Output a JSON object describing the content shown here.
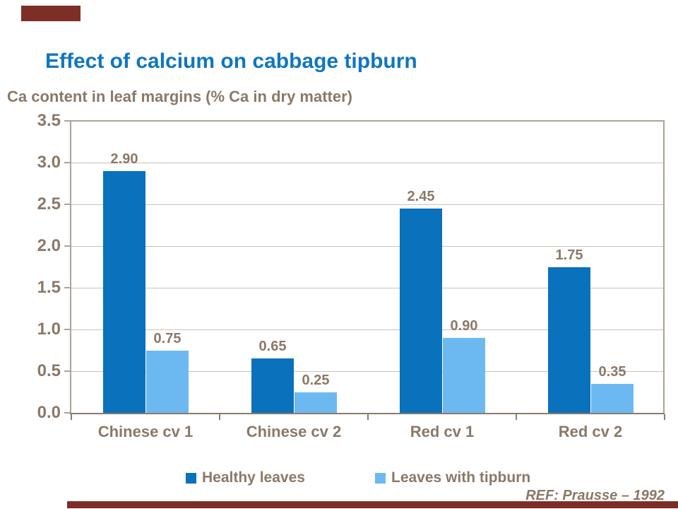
{
  "slide": {
    "title": "Effect of calcium on cabbage tipburn",
    "reference": "REF: Prausse – 1992",
    "colors": {
      "title_blue": "#0F76C0",
      "text_tan": "#8A7968",
      "accent_maroon": "#7D2E26",
      "gridline": "#C9C2BA",
      "plot_frame": "#ACA399",
      "axis_line": "#8C7C6A"
    }
  },
  "chart_data": {
    "type": "bar",
    "title": "Ca content in leaf margins (% Ca in dry matter)",
    "categories": [
      "Chinese cv 1",
      "Chinese cv 2",
      "Red cv 1",
      "Red cv 2"
    ],
    "series": [
      {
        "name": "Healthy leaves",
        "color": "#0A71BC",
        "values": [
          2.9,
          0.65,
          2.45,
          1.75
        ],
        "labels": [
          "2.90",
          "0.65",
          "2.45",
          "1.75"
        ]
      },
      {
        "name": "Leaves with tipburn",
        "color": "#6CB9F1",
        "values": [
          0.75,
          0.25,
          0.9,
          0.35
        ],
        "labels": [
          "0.75",
          "0.25",
          "0.90",
          "0.35"
        ]
      }
    ],
    "ylabel": "",
    "xlabel": "",
    "ylim": [
      0,
      3.5
    ],
    "ytick_step": 0.5,
    "yticks": [
      "0.0",
      "0.5",
      "1.0",
      "1.5",
      "2.0",
      "2.5",
      "3.0",
      "3.5"
    ],
    "grid": true,
    "legend_position": "bottom"
  }
}
